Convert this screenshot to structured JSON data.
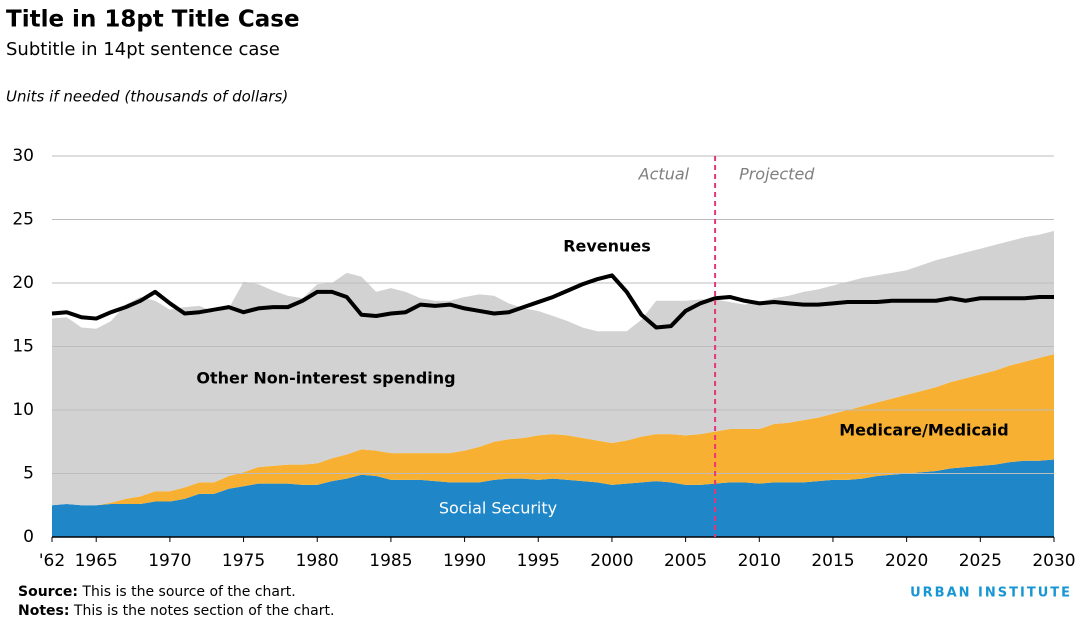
{
  "chart_data": {
    "type": "area",
    "title": "Title in 18pt Title Case",
    "subtitle": "Subtitle in 14pt sentence case",
    "units": "Units if needed (thousands of dollars)",
    "x": [
      1962,
      1963,
      1964,
      1965,
      1966,
      1967,
      1968,
      1969,
      1970,
      1971,
      1972,
      1973,
      1974,
      1975,
      1976,
      1977,
      1978,
      1979,
      1980,
      1981,
      1982,
      1983,
      1984,
      1985,
      1986,
      1987,
      1988,
      1989,
      1990,
      1991,
      1992,
      1993,
      1994,
      1995,
      1996,
      1997,
      1998,
      1999,
      2000,
      2001,
      2002,
      2003,
      2004,
      2005,
      2006,
      2007,
      2008,
      2009,
      2010,
      2011,
      2012,
      2013,
      2014,
      2015,
      2016,
      2017,
      2018,
      2019,
      2020,
      2021,
      2022,
      2023,
      2024,
      2025,
      2026,
      2027,
      2028,
      2029,
      2030
    ],
    "stacked": true,
    "series": [
      {
        "name": "Social Security",
        "type": "area",
        "color": "#1f86c8",
        "label_color": "#ffffff",
        "values": [
          2.5,
          2.6,
          2.5,
          2.5,
          2.6,
          2.6,
          2.6,
          2.8,
          2.8,
          3.0,
          3.4,
          3.4,
          3.8,
          4.0,
          4.2,
          4.2,
          4.2,
          4.1,
          4.1,
          4.4,
          4.6,
          4.9,
          4.8,
          4.5,
          4.5,
          4.5,
          4.4,
          4.3,
          4.3,
          4.3,
          4.5,
          4.6,
          4.6,
          4.5,
          4.6,
          4.5,
          4.4,
          4.3,
          4.1,
          4.2,
          4.3,
          4.4,
          4.3,
          4.1,
          4.1,
          4.2,
          4.3,
          4.3,
          4.2,
          4.3,
          4.3,
          4.3,
          4.4,
          4.5,
          4.5,
          4.6,
          4.8,
          4.9,
          5.0,
          5.1,
          5.2,
          5.4,
          5.5,
          5.6,
          5.7,
          5.9,
          6.0,
          6.0,
          6.1
        ]
      },
      {
        "name": "Medicare/Medicaid",
        "type": "area",
        "color": "#f7b031",
        "label_color": "#000000",
        "values": [
          0,
          0,
          0,
          0,
          0.1,
          0.4,
          0.6,
          0.8,
          0.8,
          0.9,
          0.9,
          0.9,
          1.0,
          1.1,
          1.3,
          1.4,
          1.5,
          1.6,
          1.7,
          1.8,
          1.9,
          2.0,
          2.0,
          2.1,
          2.1,
          2.1,
          2.2,
          2.3,
          2.5,
          2.8,
          3.0,
          3.1,
          3.2,
          3.5,
          3.5,
          3.5,
          3.4,
          3.3,
          3.3,
          3.4,
          3.6,
          3.7,
          3.8,
          3.9,
          4.0,
          4.1,
          4.2,
          4.2,
          4.3,
          4.6,
          4.7,
          4.9,
          5.0,
          5.2,
          5.5,
          5.7,
          5.8,
          6.0,
          6.2,
          6.4,
          6.6,
          6.8,
          7.0,
          7.2,
          7.4,
          7.6,
          7.8,
          8.1,
          8.3
        ]
      },
      {
        "name": "Other Non-interest spending",
        "type": "area",
        "color": "#d2d2d2",
        "label_color": "#000000",
        "values": [
          14.7,
          14.7,
          14.0,
          13.9,
          14.3,
          15.3,
          15.7,
          15.0,
          14.3,
          14.2,
          13.9,
          13.4,
          13.2,
          15.0,
          14.4,
          13.8,
          13.3,
          13.1,
          14.1,
          13.8,
          14.3,
          13.6,
          12.5,
          13.0,
          12.7,
          12.2,
          12.0,
          12.0,
          12.1,
          12.0,
          11.5,
          10.7,
          10.2,
          9.8,
          9.3,
          9.0,
          8.7,
          8.6,
          8.8,
          8.6,
          9.2,
          10.5,
          10.5,
          10.6,
          10.6,
          10.4,
          10.0,
          9.8,
          10.0,
          9.9,
          10.0,
          10.1,
          10.1,
          10.1,
          10.1,
          10.1,
          10.0,
          9.9,
          9.8,
          9.9,
          10.0,
          9.9,
          9.9,
          9.9,
          9.9,
          9.8,
          9.8,
          9.7,
          9.7
        ]
      },
      {
        "name": "Revenues",
        "type": "line",
        "color": "#000000",
        "label_color": "#000000",
        "values": [
          17.6,
          17.7,
          17.3,
          17.2,
          17.7,
          18.1,
          18.6,
          19.3,
          18.4,
          17.6,
          17.7,
          17.9,
          18.1,
          17.7,
          18.0,
          18.1,
          18.1,
          18.6,
          19.3,
          19.3,
          18.9,
          17.5,
          17.4,
          17.6,
          17.7,
          18.3,
          18.2,
          18.3,
          18.0,
          17.8,
          17.6,
          17.7,
          18.1,
          18.5,
          18.9,
          19.4,
          19.9,
          20.3,
          20.6,
          19.3,
          17.5,
          16.5,
          16.6,
          17.8,
          18.4,
          18.8,
          18.9,
          18.6,
          18.4,
          18.5,
          18.4,
          18.3,
          18.3,
          18.4,
          18.5,
          18.5,
          18.5,
          18.6,
          18.6,
          18.6,
          18.6,
          18.8,
          18.6,
          18.8,
          18.8,
          18.8,
          18.8,
          18.9,
          18.9
        ]
      }
    ],
    "xlim": [
      1962,
      2030
    ],
    "xticks": [
      {
        "value": 1962,
        "label": "'62"
      },
      1965,
      1970,
      1975,
      1980,
      1985,
      1990,
      1995,
      2000,
      2005,
      2010,
      2015,
      2020,
      2025,
      2030
    ],
    "ylim": [
      0,
      30
    ],
    "yticks": [
      0,
      5,
      10,
      15,
      20,
      25,
      30
    ],
    "grid": true,
    "divider": {
      "x": 2007,
      "color": "#e8347a",
      "left_label": "Actual",
      "right_label": "Projected"
    },
    "source_label": "Source:",
    "source": "This is the source of the chart.",
    "notes_label": "Notes:",
    "notes": "This is the notes section of the chart.",
    "brand": "URBAN INSTITUTE"
  }
}
